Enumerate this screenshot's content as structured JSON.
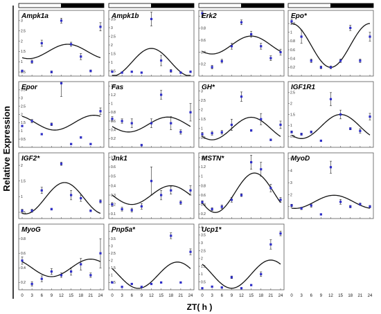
{
  "figure": {
    "ylabel": "Relative Expression",
    "xlabel": "ZT( h )"
  },
  "colors": {
    "point": "#2e2ec8",
    "curve": "#111111",
    "light_bar": "#ffffff",
    "dark_bar": "#000000"
  },
  "chart_data": {
    "type": "scatter",
    "x_ticks": [
      0,
      3,
      6,
      9,
      12,
      15,
      18,
      21,
      24
    ],
    "xlim": [
      0,
      24
    ],
    "light_dark_bar": {
      "light": [
        0,
        12
      ],
      "dark": [
        12,
        24
      ]
    },
    "panels": [
      {
        "name": "Ampk1a",
        "sig": false,
        "yticks": [
          "0.5",
          "1",
          "1.5",
          "2",
          "2.5",
          "3"
        ],
        "ylim": [
          0.3,
          3.5
        ],
        "points": [
          [
            0,
            0.55,
            0.05
          ],
          [
            3,
            1.0,
            0.08
          ],
          [
            6,
            1.9,
            0.15
          ],
          [
            9,
            0.5,
            0.05
          ],
          [
            12,
            3.0,
            0.12
          ],
          [
            15,
            1.85,
            0.1
          ],
          [
            18,
            1.25,
            0.15
          ],
          [
            21,
            0.55,
            0.05
          ],
          [
            24,
            2.7,
            0.2
          ]
        ],
        "curve": {
          "mesor": 1.5,
          "amp": 0.35,
          "peak": 14
        }
      },
      {
        "name": "Ampk1b",
        "sig": false,
        "yticks": [
          "0.5",
          "1",
          "1.5",
          "2",
          "2.5",
          "3",
          "3.5"
        ],
        "ylim": [
          0.2,
          4.0
        ],
        "points": [
          [
            0,
            0.45,
            0.03
          ],
          [
            3,
            0.4,
            0.03
          ],
          [
            6,
            0.45,
            0.03
          ],
          [
            9,
            0.4,
            0.03
          ],
          [
            12,
            3.5,
            0.4
          ],
          [
            15,
            1.1,
            0.3
          ],
          [
            18,
            0.5,
            0.08
          ],
          [
            21,
            0.4,
            0.05
          ],
          [
            24,
            0.45,
            0.05
          ]
        ],
        "curve": {
          "mesor": 1.0,
          "amp": 0.8,
          "peak": 12
        }
      },
      {
        "name": "Erk2",
        "sig": false,
        "yticks": [
          "0.2",
          "0.4",
          "0.6",
          "0.8",
          "1"
        ],
        "ylim": [
          0.0,
          1.1
        ],
        "points": [
          [
            0,
            1.05,
            0.05
          ],
          [
            3,
            0.15,
            0.03
          ],
          [
            6,
            0.25,
            0.03
          ],
          [
            9,
            0.5,
            0.05
          ],
          [
            12,
            0.9,
            0.04
          ],
          [
            15,
            0.7,
            0.05
          ],
          [
            18,
            0.5,
            0.05
          ],
          [
            21,
            0.3,
            0.04
          ],
          [
            24,
            0.4,
            0.05
          ]
        ],
        "curve": {
          "mesor": 0.52,
          "amp": 0.15,
          "peak": 15
        }
      },
      {
        "name": "Epo",
        "sig": true,
        "yticks": [
          "0.2",
          "0.4",
          "0.6",
          "0.8",
          "1",
          "1.2"
        ],
        "ylim": [
          0.0,
          1.5
        ],
        "points": [
          [
            0,
            1.25,
            0.05
          ],
          [
            3,
            0.9,
            0.15
          ],
          [
            6,
            0.35,
            0.04
          ],
          [
            9,
            0.2,
            0.03
          ],
          [
            12,
            0.2,
            0.03
          ],
          [
            15,
            0.35,
            0.04
          ],
          [
            18,
            1.1,
            0.06
          ],
          [
            21,
            0.35,
            0.04
          ],
          [
            24,
            0.9,
            0.1
          ]
        ],
        "curve": {
          "mesor": 0.7,
          "amp": 0.5,
          "peak": 24
        }
      },
      {
        "name": "Epor",
        "sig": false,
        "yticks": [
          "0.5",
          "1",
          "1.5",
          "2",
          "2.5",
          "3",
          "3.5"
        ],
        "ylim": [
          0.0,
          4.0
        ],
        "points": [
          [
            0,
            1.3,
            0.05
          ],
          [
            3,
            1.6,
            0.1
          ],
          [
            6,
            0.8,
            0.05
          ],
          [
            9,
            1.4,
            0.08
          ],
          [
            12,
            3.9,
            0.8
          ],
          [
            15,
            0.2,
            0.03
          ],
          [
            18,
            0.6,
            0.05
          ],
          [
            21,
            0.2,
            0.03
          ],
          [
            24,
            2.2,
            0.2
          ]
        ],
        "curve": {
          "mesor": 1.5,
          "amp": 0.45,
          "peak": 22
        }
      },
      {
        "name": "Fas",
        "sig": false,
        "yticks": [
          "0.2",
          "0.4",
          "0.6",
          "0.8",
          "1",
          "1.2",
          "1.4"
        ],
        "ylim": [
          0.0,
          1.5
        ],
        "points": [
          [
            0,
            0.65,
            0.05
          ],
          [
            3,
            0.6,
            0.05
          ],
          [
            6,
            0.55,
            0.1
          ],
          [
            9,
            0.05,
            0.02
          ],
          [
            12,
            0.55,
            0.1
          ],
          [
            15,
            1.2,
            0.1
          ],
          [
            18,
            0.55,
            0.15
          ],
          [
            21,
            0.35,
            0.05
          ],
          [
            24,
            0.8,
            0.2
          ]
        ],
        "curve": {
          "mesor": 0.52,
          "amp": 0.17,
          "peak": 17
        }
      },
      {
        "name": "GH",
        "sig": true,
        "yticks": [
          "0.5",
          "1",
          "1.5",
          "2",
          "2.5",
          "3"
        ],
        "ylim": [
          0.0,
          3.5
        ],
        "points": [
          [
            0,
            0.7,
            0.1
          ],
          [
            3,
            0.75,
            0.1
          ],
          [
            6,
            0.8,
            0.1
          ],
          [
            9,
            1.2,
            0.3
          ],
          [
            12,
            2.7,
            0.25
          ],
          [
            15,
            0.9,
            0.05
          ],
          [
            18,
            1.5,
            0.3
          ],
          [
            21,
            0.4,
            0.05
          ],
          [
            24,
            1.2,
            0.2
          ]
        ],
        "curve": {
          "mesor": 1.0,
          "amp": 0.6,
          "peak": 15
        }
      },
      {
        "name": "IGF1R1",
        "sig": false,
        "yticks": [
          "0.5",
          "1",
          "1.5",
          "2",
          "2.5"
        ],
        "ylim": [
          0.0,
          3.0
        ],
        "points": [
          [
            0,
            0.7,
            0.05
          ],
          [
            3,
            0.6,
            0.05
          ],
          [
            6,
            0.7,
            0.05
          ],
          [
            9,
            0.3,
            0.03
          ],
          [
            12,
            2.2,
            0.3
          ],
          [
            15,
            1.5,
            0.2
          ],
          [
            18,
            0.85,
            0.05
          ],
          [
            21,
            0.75,
            0.1
          ],
          [
            24,
            1.4,
            0.15
          ]
        ],
        "curve": {
          "mesor": 0.95,
          "amp": 0.55,
          "peak": 15
        }
      },
      {
        "name": "IGF2",
        "sig": true,
        "yticks": [
          "0.5",
          "1",
          "1.5",
          "2"
        ],
        "ylim": [
          0.3,
          2.4
        ],
        "points": [
          [
            0,
            0.55,
            0.05
          ],
          [
            3,
            0.55,
            0.05
          ],
          [
            6,
            1.2,
            0.1
          ],
          [
            9,
            0.6,
            0.03
          ],
          [
            12,
            2.05,
            0.05
          ],
          [
            15,
            1.05,
            0.15
          ],
          [
            18,
            0.95,
            0.1
          ],
          [
            21,
            0.55,
            0.03
          ],
          [
            24,
            0.85,
            0.05
          ]
        ],
        "curve": {
          "mesor": 0.95,
          "amp": 0.5,
          "peak": 13
        }
      },
      {
        "name": "Jnk1",
        "sig": false,
        "yticks": [
          "0.1",
          "0.2",
          "0.3",
          "0.4",
          "0.5",
          "0.6",
          "0.7"
        ],
        "ylim": [
          0.05,
          0.75
        ],
        "points": [
          [
            0,
            0.2,
            0.02
          ],
          [
            3,
            0.15,
            0.02
          ],
          [
            6,
            0.14,
            0.02
          ],
          [
            9,
            0.18,
            0.03
          ],
          [
            12,
            0.45,
            0.15
          ],
          [
            15,
            0.3,
            0.05
          ],
          [
            18,
            0.35,
            0.04
          ],
          [
            21,
            0.22,
            0.02
          ],
          [
            24,
            0.35,
            0.05
          ]
        ],
        "curve": {
          "mesor": 0.3,
          "amp": 0.1,
          "peak": 18
        }
      },
      {
        "name": "MSTN",
        "sig": true,
        "yticks": [
          "0.2",
          "0.4",
          "0.6",
          "0.8",
          "1",
          "1.2",
          "1.4"
        ],
        "ylim": [
          0.1,
          1.5
        ],
        "points": [
          [
            0,
            0.45,
            0.03
          ],
          [
            3,
            0.3,
            0.03
          ],
          [
            6,
            0.35,
            0.04
          ],
          [
            9,
            0.5,
            0.05
          ],
          [
            12,
            0.6,
            0.03
          ],
          [
            15,
            1.3,
            0.15
          ],
          [
            18,
            1.15,
            0.15
          ],
          [
            21,
            0.75,
            0.08
          ],
          [
            24,
            0.5,
            0.05
          ]
        ],
        "curve": {
          "mesor": 0.65,
          "amp": 0.42,
          "peak": 16
        }
      },
      {
        "name": "MyoD",
        "sig": false,
        "yticks": [
          "1",
          "2",
          "3",
          "4",
          "5"
        ],
        "ylim": [
          0.0,
          5.5
        ],
        "points": [
          [
            0,
            1.1,
            0.1
          ],
          [
            3,
            0.85,
            0.1
          ],
          [
            6,
            1.1,
            0.15
          ],
          [
            9,
            0.35,
            0.05
          ],
          [
            12,
            4.3,
            0.5
          ],
          [
            15,
            1.4,
            0.2
          ],
          [
            18,
            1.0,
            0.1
          ],
          [
            21,
            1.2,
            0.1
          ],
          [
            24,
            1.0,
            0.1
          ]
        ],
        "curve": {
          "mesor": 1.4,
          "amp": 0.55,
          "peak": 13
        }
      },
      {
        "name": "MyoG",
        "sig": false,
        "yticks": [
          "0.2",
          "0.4",
          "0.6",
          "0.8",
          "1"
        ],
        "ylim": [
          0.1,
          1.0
        ],
        "points": [
          [
            0,
            0.5,
            0.05
          ],
          [
            3,
            0.18,
            0.03
          ],
          [
            6,
            0.25,
            0.04
          ],
          [
            9,
            0.35,
            0.04
          ],
          [
            12,
            0.3,
            0.03
          ],
          [
            15,
            0.35,
            0.05
          ],
          [
            18,
            0.45,
            0.08
          ],
          [
            21,
            0.3,
            0.03
          ],
          [
            24,
            0.6,
            0.2
          ]
        ],
        "curve": {
          "mesor": 0.4,
          "amp": 0.12,
          "peak": 21
        }
      },
      {
        "name": "Pnp5a",
        "sig": true,
        "yticks": [
          "0.5",
          "1",
          "1.5",
          "2",
          "2.5",
          "3",
          "3.5",
          "4"
        ],
        "ylim": [
          0.0,
          4.5
        ],
        "points": [
          [
            0,
            0.5,
            0.05
          ],
          [
            3,
            0.2,
            0.03
          ],
          [
            6,
            0.4,
            0.03
          ],
          [
            9,
            0.2,
            0.03
          ],
          [
            12,
            0.4,
            0.03
          ],
          [
            15,
            0.5,
            0.05
          ],
          [
            18,
            3.7,
            0.2
          ],
          [
            21,
            0.5,
            0.05
          ],
          [
            24,
            2.6,
            0.2
          ]
        ],
        "curve": {
          "mesor": 1.0,
          "amp": 0.9,
          "peak": 20
        }
      },
      {
        "name": "Ucp1",
        "sig": true,
        "yticks": [
          "0.5",
          "1",
          "1.5",
          "2",
          "2.5",
          "3",
          "3.5",
          "4"
        ],
        "ylim": [
          0.0,
          4.2
        ],
        "points": [
          [
            0,
            0.1,
            0.03
          ],
          [
            3,
            0.2,
            0.03
          ],
          [
            6,
            0.15,
            0.03
          ],
          [
            9,
            0.8,
            0.08
          ],
          [
            12,
            0.1,
            0.02
          ],
          [
            15,
            0.3,
            0.04
          ],
          [
            18,
            1.0,
            0.15
          ],
          [
            21,
            2.9,
            0.3
          ],
          [
            24,
            3.6,
            0.15
          ]
        ],
        "curve": {
          "mesor": 1.0,
          "amp": 0.9,
          "peak": 21
        }
      }
    ]
  }
}
